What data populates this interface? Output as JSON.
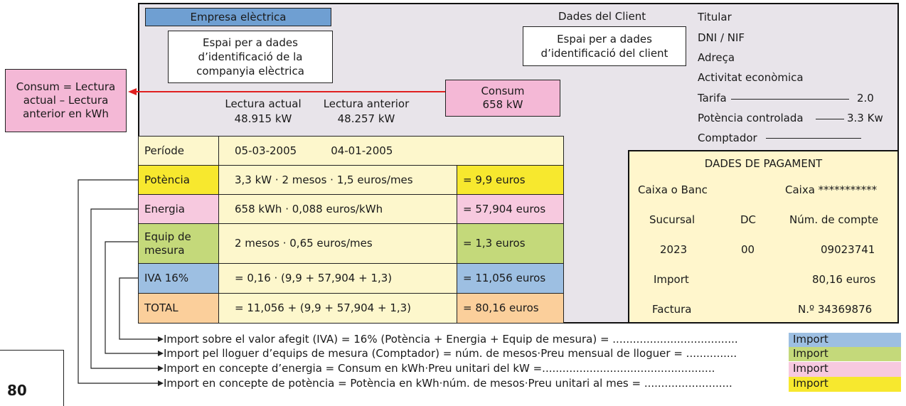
{
  "company": {
    "title": "Empresa elèctrica",
    "id_line1": "Espai per a dades",
    "id_line2": "d’identificació de la",
    "id_line3": "companyia elèctrica"
  },
  "client": {
    "heading": "Dades del Client",
    "id_line1": "Espai per a dades",
    "id_line2": "d’identificació del client"
  },
  "client_fields": {
    "titular": "Titular",
    "dni": "DNI / NIF",
    "adreca": "Adreça",
    "activitat": "Activitat econòmica",
    "tarifa_label": "Tarifa",
    "tarifa_value": "2.0",
    "potencia_label": "Potència controlada",
    "potencia_value": "3.3 Kw",
    "comptador_label": "Comptador"
  },
  "readings": {
    "current_label": "Lectura actual",
    "current_value": "48.915 kW",
    "previous_label": "Lectura anterior",
    "previous_value": "48.257 kW"
  },
  "consum": {
    "label": "Consum",
    "value": "658 kW"
  },
  "consum_note": {
    "line1": "Consum = Lectura",
    "line2": "actual – Lectura",
    "line3": "anterior en kWh"
  },
  "table": {
    "period_label": "Període",
    "period_from": "05-03-2005",
    "period_to": "04-01-2005",
    "rows": [
      {
        "label": "Potència",
        "formula": "3,3 kW · 2 mesos · 1,5 euros/mes",
        "result": "= 9,9 euros"
      },
      {
        "label": "Energia",
        "formula": "658 kWh · 0,088 euros/kWh",
        "result": "= 57,904 euros"
      },
      {
        "label": "Equip de mesura",
        "formula": "2 mesos · 0,65 euros/mes",
        "result": "= 1,3 euros"
      },
      {
        "label": "IVA 16%",
        "formula": "= 0,16 · (9,9 + 57,904 + 1,3)",
        "result": "= 11,056 euros"
      },
      {
        "label": "TOTAL",
        "formula": "= 11,056 + (9,9 + 57,904 + 1,3)",
        "result": "= 80,16 euros"
      }
    ]
  },
  "payment": {
    "heading": "DADES DE PAGAMENT",
    "bank_label": "Caixa o Banc",
    "bank_value": "Caixa ***********",
    "branch_label": "Sucursal",
    "dc_label": "DC",
    "account_label": "Núm. de compte",
    "branch_value": "2023",
    "dc_value": "00",
    "account_value": "09023741",
    "import_label": "Import",
    "import_value": "80,16 euros",
    "invoice_label": "Factura",
    "invoice_value": "N.º 34369876"
  },
  "legend": [
    {
      "text": "Import sobre el valor afegit (IVA) = 16% (Potència + Energia + Equip de mesura) = .....................................",
      "tag": "Import"
    },
    {
      "text": "Import pel lloguer d’equips de mesura (Comptador) = núm. de mesos·Preu mensual de lloguer = ...............",
      "tag": "Import"
    },
    {
      "text": "Import en concepte d’energia = Consum en kWh·Preu unitari del kW =...................................................",
      "tag": "Import"
    },
    {
      "text": "Import en concepte de potència = Potència en kWh·núm. de mesos·Preu unitari al mes = ..........................",
      "tag": "Import"
    }
  ],
  "page_number": "80",
  "colors": {
    "blue": "#9dbfe2",
    "pink": "#f7c9df",
    "green": "#c4d97a",
    "yellow": "#f7e82e",
    "orange": "#fbcf9b",
    "cream": "#fdf7cc",
    "arrow": "#e02020"
  }
}
